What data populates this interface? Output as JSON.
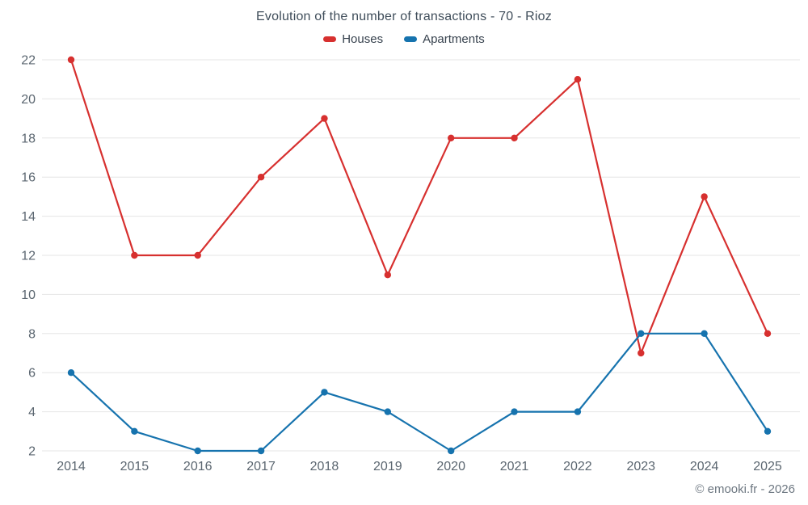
{
  "chart_data": {
    "type": "line",
    "title": "Evolution of the number of transactions - 70 - Rioz",
    "categories": [
      "2014",
      "2015",
      "2016",
      "2017",
      "2018",
      "2019",
      "2020",
      "2021",
      "2022",
      "2023",
      "2024",
      "2025"
    ],
    "series": [
      {
        "name": "Houses",
        "color": "#d7302f",
        "values": [
          22,
          12,
          12,
          16,
          19,
          11,
          18,
          18,
          21,
          7,
          15,
          8
        ]
      },
      {
        "name": "Apartments",
        "color": "#1673ae",
        "values": [
          6,
          3,
          2,
          2,
          5,
          4,
          2,
          4,
          4,
          8,
          8,
          3
        ]
      }
    ],
    "xlabel": "",
    "ylabel": "",
    "ylim": [
      2,
      22
    ],
    "ytick_step": 2,
    "grid": "horizontal",
    "legend_position": "top",
    "credit": "© emooki.fr - 2026"
  },
  "style": {
    "grid_color": "#e6e6e6",
    "tick_label_color": "#5b6670",
    "title_color": "#3f4d5a"
  }
}
